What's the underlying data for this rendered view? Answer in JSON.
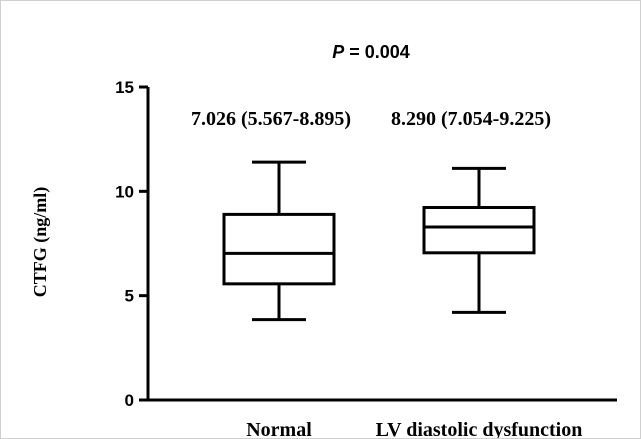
{
  "chart_data": {
    "type": "box",
    "title_prefix": "P",
    "title_rest": " = 0.004",
    "ylabel": "CTFG (ng/ml)",
    "xlabel": "",
    "ylim": [
      0,
      15
    ],
    "yticks": [
      0,
      5,
      10,
      15
    ],
    "grid": false,
    "categories": [
      "Normal",
      "LV diastolic dysfunction"
    ],
    "boxes": [
      {
        "category": "Normal",
        "whisker_low": 3.85,
        "q1": 5.567,
        "median": 7.026,
        "q3": 8.895,
        "whisker_high": 11.4,
        "annotation": "7.026 (5.567-8.895)"
      },
      {
        "category": "LV diastolic dysfunction",
        "whisker_low": 4.2,
        "q1": 7.054,
        "median": 8.29,
        "q3": 9.225,
        "whisker_high": 11.1,
        "annotation": "8.290 (7.054-9.225)"
      }
    ],
    "colors": {
      "stroke": "#000000",
      "fill": "#ffffff"
    }
  }
}
